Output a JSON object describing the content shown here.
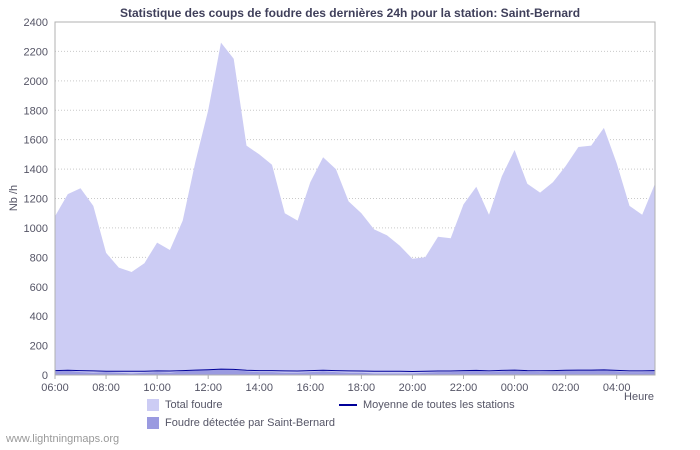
{
  "watermark": "www.lightningmaps.org",
  "chart_data": {
    "type": "area",
    "title": "Statistique des coups de foudre des dernières 24h pour la station: Saint-Bernard",
    "xlabel": "Heure",
    "ylabel": "Nb /h",
    "ylim": [
      0,
      2400
    ],
    "ytick_step": 200,
    "grid": "horizontal-dotted",
    "legend_position": "bottom",
    "colors": {
      "grid": "#c9c9c9",
      "frame": "#b0b0b0",
      "text": "#555566"
    },
    "x": [
      "06:00",
      "06:30",
      "07:00",
      "07:30",
      "08:00",
      "08:30",
      "09:00",
      "09:30",
      "10:00",
      "10:30",
      "11:00",
      "11:30",
      "12:00",
      "12:30",
      "13:00",
      "13:30",
      "14:00",
      "14:30",
      "15:00",
      "15:30",
      "16:00",
      "16:30",
      "17:00",
      "17:30",
      "18:00",
      "18:30",
      "19:00",
      "19:30",
      "20:00",
      "20:30",
      "21:00",
      "21:30",
      "22:00",
      "22:30",
      "23:00",
      "23:30",
      "00:00",
      "00:30",
      "01:00",
      "01:30",
      "02:00",
      "02:30",
      "03:00",
      "03:30",
      "04:00",
      "04:30",
      "05:00",
      "05:30"
    ],
    "xticks": [
      "06:00",
      "08:00",
      "10:00",
      "12:00",
      "14:00",
      "16:00",
      "18:00",
      "20:00",
      "22:00",
      "00:00",
      "02:00",
      "04:00"
    ],
    "series": [
      {
        "name": "Total foudre",
        "type": "area",
        "color": "#ccccf4",
        "values": [
          1080,
          1230,
          1270,
          1150,
          830,
          730,
          700,
          760,
          900,
          850,
          1050,
          1450,
          1800,
          2260,
          2150,
          1560,
          1500,
          1430,
          1100,
          1050,
          1310,
          1480,
          1400,
          1180,
          1100,
          990,
          950,
          880,
          790,
          800,
          940,
          930,
          1160,
          1280,
          1090,
          1350,
          1530,
          1300,
          1240,
          1310,
          1420,
          1550,
          1560,
          1680,
          1440,
          1150,
          1090,
          1300
        ]
      },
      {
        "name": "Foudre détectée par Saint-Bernard",
        "type": "area",
        "color": "#9a9ae0",
        "values": [
          25,
          30,
          20,
          15,
          20,
          15,
          10,
          15,
          20,
          15,
          25,
          30,
          35,
          40,
          35,
          25,
          20,
          20,
          15,
          15,
          20,
          25,
          20,
          15,
          15,
          10,
          10,
          10,
          10,
          15,
          20,
          20,
          25,
          30,
          20,
          25,
          30,
          25,
          20,
          25,
          30,
          30,
          30,
          35,
          25,
          20,
          20,
          25
        ]
      },
      {
        "name": "Moyenne de toutes les stations",
        "type": "line",
        "color": "#000099",
        "values": [
          30,
          32,
          30,
          28,
          26,
          25,
          25,
          26,
          28,
          27,
          30,
          33,
          36,
          40,
          38,
          32,
          30,
          30,
          28,
          27,
          30,
          32,
          30,
          28,
          27,
          26,
          25,
          25,
          24,
          25,
          27,
          27,
          30,
          31,
          28,
          31,
          33,
          30,
          29,
          30,
          32,
          33,
          33,
          35,
          31,
          28,
          28,
          30
        ]
      }
    ]
  }
}
